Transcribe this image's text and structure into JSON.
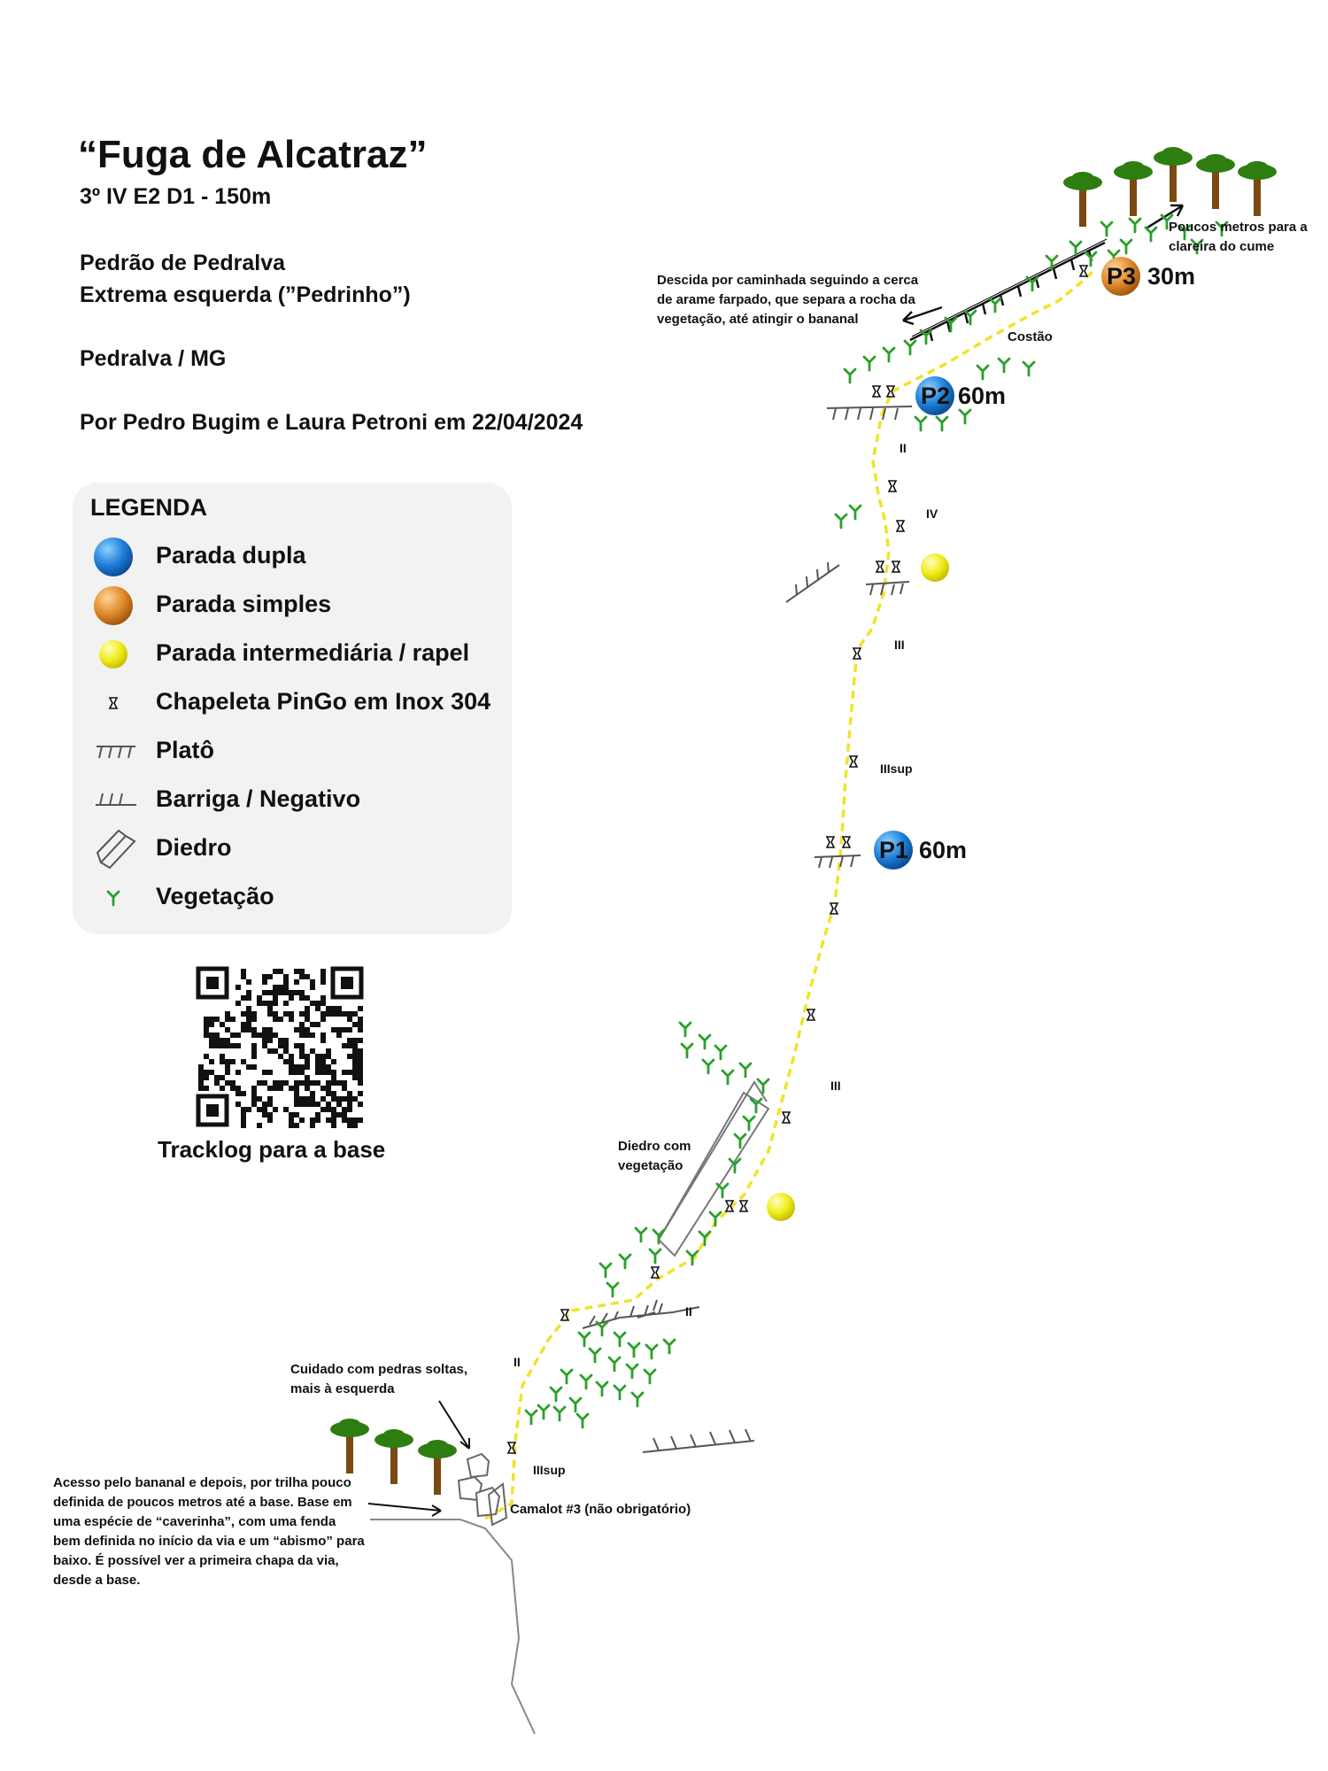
{
  "header": {
    "title": "“Fuga de Alcatraz”",
    "grade_line": "3º IV E2 D1 - 150m",
    "crag": "Pedrão de Pedralva",
    "sector": "Extrema esquerda (”Pedrinho”)",
    "location": "Pedralva / MG",
    "authors": "Por Pedro Bugim e Laura Petroni em 22/04/2024"
  },
  "legend": {
    "title": "LEGENDA",
    "items": [
      {
        "label": "Parada dupla",
        "icon": "blue-ball-icon"
      },
      {
        "label": "Parada simples",
        "icon": "orange-ball-icon"
      },
      {
        "label": "Parada intermediária / rapel",
        "icon": "yellow-ball-icon"
      },
      {
        "label": "Chapeleta PinGo em Inox 304",
        "icon": "bolt-icon"
      },
      {
        "label": "Platô",
        "icon": "ledge-icon"
      },
      {
        "label": "Barriga / Negativo",
        "icon": "overhang-icon"
      },
      {
        "label": "Diedro",
        "icon": "dihedral-icon"
      },
      {
        "label": "Vegetação",
        "icon": "vegetation-icon"
      }
    ]
  },
  "qr": {
    "caption": "Tracklog para a base"
  },
  "stops": {
    "p1": {
      "id": "P1",
      "length": "60m"
    },
    "p2": {
      "id": "P2",
      "length": "60m"
    },
    "p3": {
      "id": "P3",
      "length": "30m"
    }
  },
  "grades": {
    "g_ii_top": "II",
    "g_iv": "IV",
    "g_iii_upper": "III",
    "g_iiisup_upper": "IIIsup",
    "g_iii_lower": "III",
    "g_ii_mid": "II",
    "g_ii_low": "II",
    "g_iiisup_low": "IIIsup"
  },
  "notes": {
    "summit": "Poucos metros para a clareira do cume",
    "descent": "Descida por caminhada seguindo a cerca de arame farpado, que separa a rocha da vegetação, até atingir o bananal",
    "costao": "Costão",
    "dihedral": "Diedro com vegetação",
    "loose_rocks": "Cuidado com pedras soltas, mais à esquerda",
    "access": "Acesso pelo bananal e depois, por trilha pouco definida de poucos metros até a base. Base em uma espécie de “caverinha”, com uma fenda bem definida no início da via e um “abismo” para baixo. É possível ver a primeira chapa da via, desde a base.",
    "camalot": "Camalot #3 (não obrigatório)"
  },
  "colors": {
    "route": "#f2e22a",
    "double_stop": "#1e7fd8",
    "single_stop": "#e08a2a",
    "intermediate": "#f0ec1a",
    "vegetation": "#2aa02a",
    "trunk": "#7a4a12",
    "canopy": "#2e7d10"
  }
}
